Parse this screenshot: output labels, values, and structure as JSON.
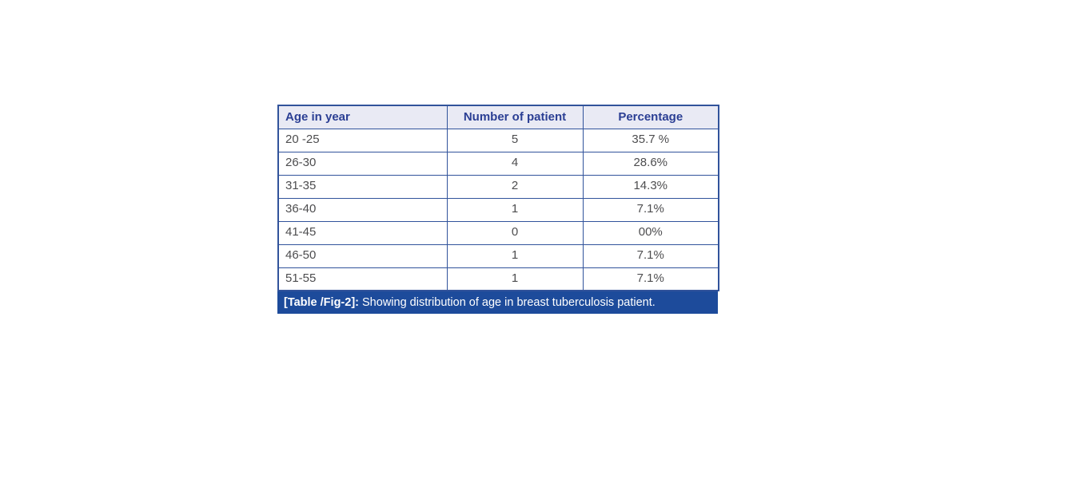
{
  "table": {
    "headers": [
      "Age in year",
      "Number of patient",
      "Percentage"
    ],
    "rows": [
      [
        "20 -25",
        "5",
        "35.7 %"
      ],
      [
        "26-30",
        "4",
        "28.6%"
      ],
      [
        "31-35",
        "2",
        "14.3%"
      ],
      [
        "36-40",
        "1",
        "7.1%"
      ],
      [
        "41-45",
        "0",
        "00%"
      ],
      [
        "46-50",
        "1",
        "7.1%"
      ],
      [
        "51-55",
        "1",
        "7.1%"
      ]
    ]
  },
  "caption": {
    "label": "[Table /Fig-2]:",
    "text": " Showing distribution of age in breast tuberculosis patient."
  },
  "colors": {
    "header_bg": "#e9eaf4",
    "header_text": "#2b3f94",
    "border": "#31539b",
    "caption_bg": "#1d4b9b",
    "caption_text": "#ffffff",
    "body_text": "#4d4d4f"
  },
  "chart_data": {
    "type": "table",
    "title": "[Table /Fig-2]: Showing distribution of age in breast tuberculosis patient.",
    "columns": [
      "Age in year",
      "Number of patient",
      "Percentage"
    ],
    "categories": [
      "20 -25",
      "26-30",
      "31-35",
      "36-40",
      "41-45",
      "46-50",
      "51-55"
    ],
    "series": [
      {
        "name": "Number of patient",
        "values": [
          5,
          4,
          2,
          1,
          0,
          1,
          1
        ]
      },
      {
        "name": "Percentage",
        "values": [
          "35.7 %",
          "28.6%",
          "14.3%",
          "7.1%",
          "00%",
          "7.1%",
          "7.1%"
        ]
      }
    ]
  }
}
